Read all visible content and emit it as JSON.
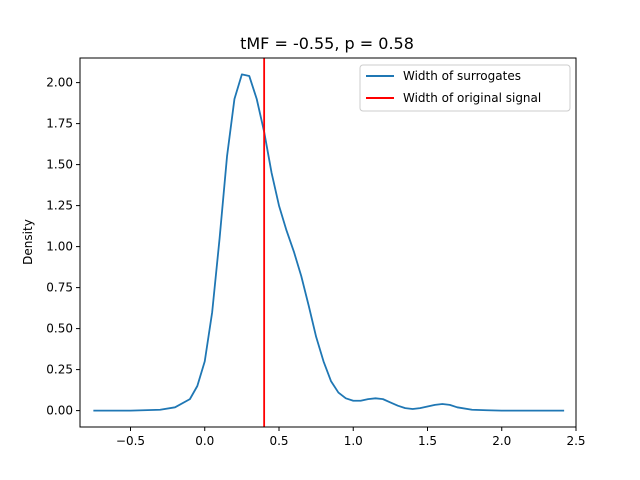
{
  "chart_data": {
    "type": "line",
    "title": "tMF = -0.55, p = 0.58",
    "xlabel": "",
    "ylabel": "Density",
    "xlim": [
      -0.84,
      2.5
    ],
    "ylim": [
      -0.1,
      2.15
    ],
    "xticks": [
      -0.5,
      0.0,
      0.5,
      1.0,
      1.5,
      2.0,
      2.5
    ],
    "xtick_labels": [
      "−0.5",
      "0.0",
      "0.5",
      "1.0",
      "1.5",
      "2.0",
      "2.5"
    ],
    "yticks": [
      0.0,
      0.25,
      0.5,
      0.75,
      1.0,
      1.25,
      1.5,
      1.75,
      2.0
    ],
    "ytick_labels": [
      "0.00",
      "0.25",
      "0.50",
      "0.75",
      "1.00",
      "1.25",
      "1.50",
      "1.75",
      "2.00"
    ],
    "grid": false,
    "legend_position": "top-right",
    "series": [
      {
        "name": "Width of surrogates",
        "color": "#1f77b4",
        "x": [
          -0.75,
          -0.5,
          -0.3,
          -0.2,
          -0.1,
          -0.05,
          0.0,
          0.05,
          0.1,
          0.15,
          0.2,
          0.25,
          0.3,
          0.35,
          0.4,
          0.45,
          0.5,
          0.55,
          0.6,
          0.65,
          0.7,
          0.75,
          0.8,
          0.85,
          0.9,
          0.95,
          1.0,
          1.05,
          1.1,
          1.15,
          1.2,
          1.25,
          1.3,
          1.35,
          1.4,
          1.45,
          1.5,
          1.55,
          1.6,
          1.65,
          1.7,
          1.8,
          1.9,
          2.0,
          2.2,
          2.42
        ],
        "y": [
          0.0,
          0.0,
          0.005,
          0.02,
          0.07,
          0.15,
          0.3,
          0.6,
          1.05,
          1.55,
          1.9,
          2.05,
          2.04,
          1.9,
          1.7,
          1.45,
          1.25,
          1.1,
          0.97,
          0.82,
          0.64,
          0.45,
          0.3,
          0.18,
          0.11,
          0.075,
          0.06,
          0.06,
          0.07,
          0.075,
          0.07,
          0.05,
          0.03,
          0.015,
          0.01,
          0.015,
          0.025,
          0.035,
          0.04,
          0.035,
          0.02,
          0.005,
          0.002,
          0.0,
          0.0,
          0.0
        ]
      },
      {
        "name": "Width of original signal",
        "color": "#ff0000",
        "vline_x": 0.4
      }
    ]
  }
}
